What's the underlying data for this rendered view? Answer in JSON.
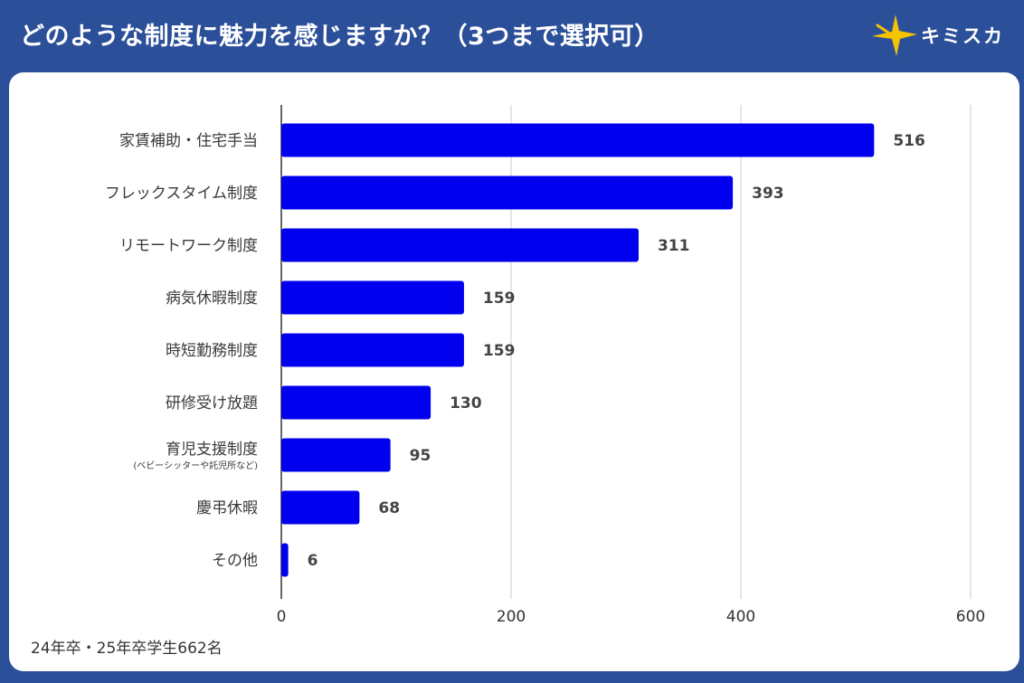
{
  "header": {
    "title": "どのような制度に魅力を感じますか？（3つまで選択可）",
    "logo_text": "キミスカ",
    "logo_icon": "star-icon"
  },
  "colors": {
    "background": "#2c4f9a",
    "bar": "#0000ee",
    "logo_star": "#f5c400"
  },
  "footnote": "24年卒・25年卒学生662名",
  "chart_data": {
    "type": "bar",
    "orientation": "horizontal",
    "title": "",
    "xlabel": "",
    "ylabel": "",
    "categories": [
      "家賃補助・住宅手当",
      "フレックスタイム制度",
      "リモートワーク制度",
      "病気休暇制度",
      "時短勤務制度",
      "研修受け放題",
      "育児支援制度",
      "慶弔休暇",
      "その他"
    ],
    "category_notes": [
      "",
      "",
      "",
      "",
      "",
      "",
      "(ベビーシッターや託児所など)",
      "",
      ""
    ],
    "values": [
      516,
      393,
      311,
      159,
      159,
      130,
      95,
      68,
      6
    ],
    "xlim": [
      0,
      600
    ],
    "xticks": [
      0,
      200,
      400,
      600
    ],
    "grid": true,
    "data_labels": true
  }
}
